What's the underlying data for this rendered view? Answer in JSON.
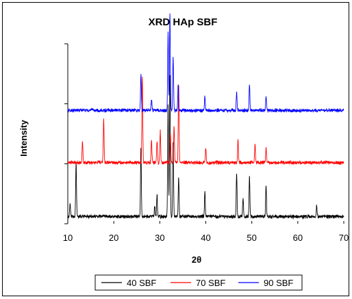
{
  "chart_data": {
    "type": "line",
    "title": "XRD HAp SBF",
    "xlabel": "2θ",
    "ylabel": "Intensity",
    "xlim": [
      10,
      70
    ],
    "x_ticks": [
      "10",
      "20",
      "30",
      "40",
      "50",
      "60",
      "70"
    ],
    "y_ticks_labeled": false,
    "grid": false,
    "legend": {
      "position": "bottom"
    },
    "series": [
      {
        "name": "40 SBF",
        "color": "#000000",
        "baseline": 4,
        "peaks": [
          [
            10.5,
            8
          ],
          [
            11.8,
            30
          ],
          [
            25.9,
            38
          ],
          [
            28.9,
            6
          ],
          [
            29.4,
            12
          ],
          [
            31.8,
            62
          ],
          [
            32.2,
            78
          ],
          [
            32.9,
            42
          ],
          [
            34.1,
            22
          ],
          [
            39.8,
            14
          ],
          [
            46.7,
            24
          ],
          [
            48.1,
            10
          ],
          [
            49.5,
            22
          ],
          [
            53.1,
            18
          ],
          [
            64.1,
            6
          ]
        ]
      },
      {
        "name": "70 SBF",
        "color": "#ff0000",
        "baseline": 34,
        "peaks": [
          [
            13.2,
            12
          ],
          [
            17.8,
            24
          ],
          [
            26.2,
            48
          ],
          [
            28.2,
            12
          ],
          [
            29.4,
            12
          ],
          [
            30.1,
            18
          ],
          [
            32.3,
            16
          ],
          [
            33.1,
            20
          ],
          [
            34.1,
            44
          ],
          [
            40.0,
            8
          ],
          [
            47.0,
            12
          ],
          [
            50.7,
            10
          ],
          [
            53.1,
            8
          ]
        ]
      },
      {
        "name": "90 SBF",
        "color": "#0000ff",
        "baseline": 63,
        "peaks": [
          [
            25.9,
            20
          ],
          [
            28.2,
            6
          ],
          [
            31.8,
            44
          ],
          [
            32.2,
            54
          ],
          [
            32.9,
            30
          ],
          [
            34.0,
            14
          ],
          [
            39.8,
            8
          ],
          [
            46.7,
            10
          ],
          [
            49.5,
            14
          ],
          [
            53.1,
            8
          ]
        ]
      }
    ]
  }
}
